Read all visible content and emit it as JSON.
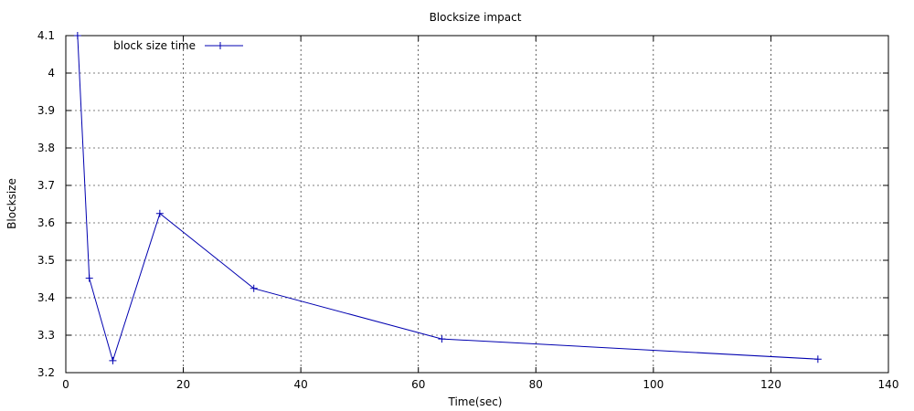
{
  "chart_data": {
    "type": "line",
    "title": "Blocksize impact",
    "xlabel": "Time(sec)",
    "ylabel": "Blocksize",
    "xlim": [
      0,
      140
    ],
    "ylim": [
      3.2,
      4.1
    ],
    "x_ticks": [
      "0",
      "20",
      "40",
      "60",
      "80",
      "100",
      "120",
      "140"
    ],
    "y_ticks": [
      "3.2",
      "3.3",
      "3.4",
      "3.5",
      "3.6",
      "3.7",
      "3.8",
      "3.9",
      "4",
      "4.1"
    ],
    "grid": true,
    "legend_position": "top-left",
    "series": [
      {
        "name": "block size time",
        "color": "#0000b0",
        "marker": "plus",
        "x": [
          2,
          4,
          8,
          16,
          32,
          64,
          128
        ],
        "y": [
          4.1,
          3.452,
          3.232,
          3.625,
          3.425,
          3.29,
          3.236
        ]
      }
    ]
  }
}
